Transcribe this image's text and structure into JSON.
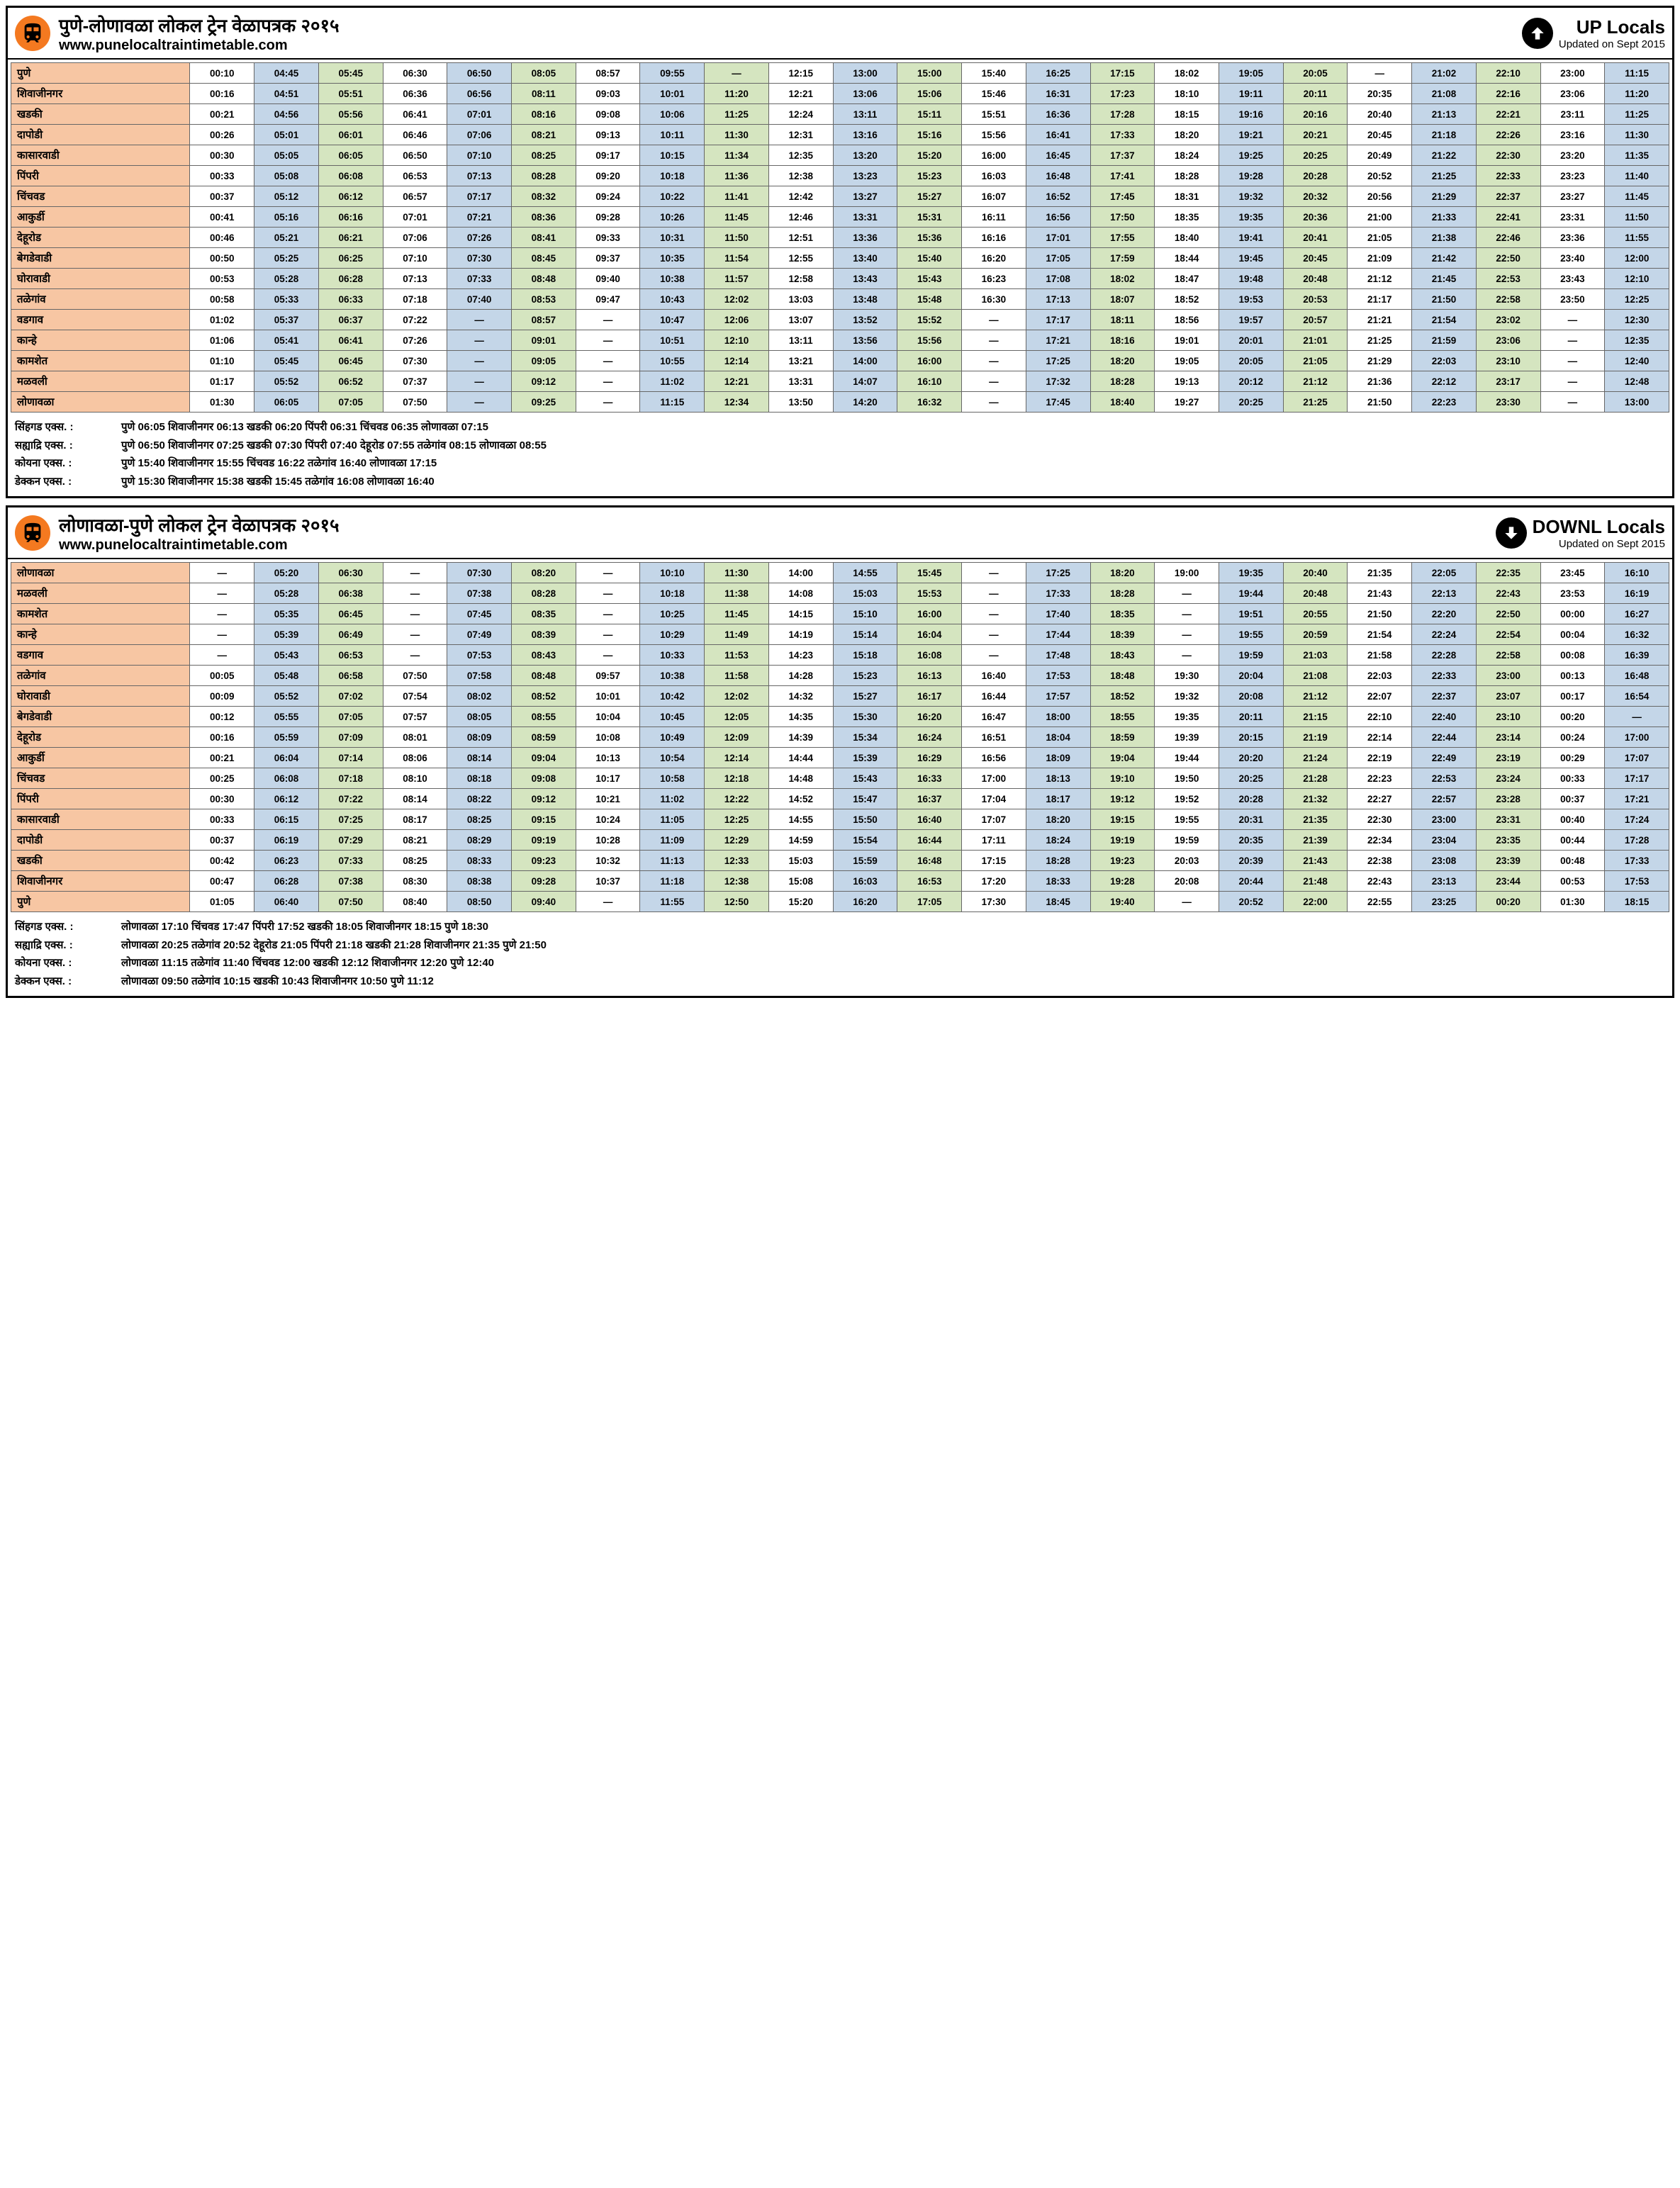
{
  "url": "www.punelocaltraintimetable.com",
  "updated": "Updated on Sept 2015",
  "colors": {
    "station_bg": "#f7c6a3",
    "col_blue": "#c4d6e8",
    "col_green": "#d5e5c0",
    "col_white": "#ffffff",
    "border": "#666666",
    "orange": "#f47920"
  },
  "up": {
    "title": "पुणे-लोणावळा लोकल ट्रेन वेळापत्रक २०१५",
    "dir_label": "UP Locals",
    "col_colors": [
      "w",
      "b",
      "g",
      "w",
      "b",
      "g",
      "w",
      "b",
      "g",
      "w",
      "b",
      "g",
      "w",
      "b",
      "g",
      "w",
      "b",
      "g",
      "w",
      "b",
      "g",
      "w",
      "b",
      "g",
      "w",
      "b"
    ],
    "stations": [
      "पुणे",
      "शिवाजीनगर",
      "खडकी",
      "दापोडी",
      "कासारवाडी",
      "पिंपरी",
      "चिंचवड",
      "आकुर्डी",
      "देहूरोड",
      "बेगडेवाडी",
      "घोरावाडी",
      "तळेगांव",
      "वडगाव",
      "कान्हे",
      "कामशेत",
      "मळवली",
      "लोणावळा"
    ],
    "rows": [
      [
        "00:10",
        "04:45",
        "05:45",
        "06:30",
        "06:50",
        "08:05",
        "08:57",
        "09:55",
        "—",
        "12:15",
        "13:00",
        "15:00",
        "15:40",
        "16:25",
        "17:15",
        "18:02",
        "19:05",
        "20:05",
        "—",
        "21:02",
        "22:10",
        "23:00",
        "11:15"
      ],
      [
        "00:16",
        "04:51",
        "05:51",
        "06:36",
        "06:56",
        "08:11",
        "09:03",
        "10:01",
        "11:20",
        "12:21",
        "13:06",
        "15:06",
        "15:46",
        "16:31",
        "17:23",
        "18:10",
        "19:11",
        "20:11",
        "20:35",
        "21:08",
        "22:16",
        "23:06",
        "11:20"
      ],
      [
        "00:21",
        "04:56",
        "05:56",
        "06:41",
        "07:01",
        "08:16",
        "09:08",
        "10:06",
        "11:25",
        "12:24",
        "13:11",
        "15:11",
        "15:51",
        "16:36",
        "17:28",
        "18:15",
        "19:16",
        "20:16",
        "20:40",
        "21:13",
        "22:21",
        "23:11",
        "11:25"
      ],
      [
        "00:26",
        "05:01",
        "06:01",
        "06:46",
        "07:06",
        "08:21",
        "09:13",
        "10:11",
        "11:30",
        "12:31",
        "13:16",
        "15:16",
        "15:56",
        "16:41",
        "17:33",
        "18:20",
        "19:21",
        "20:21",
        "20:45",
        "21:18",
        "22:26",
        "23:16",
        "11:30"
      ],
      [
        "00:30",
        "05:05",
        "06:05",
        "06:50",
        "07:10",
        "08:25",
        "09:17",
        "10:15",
        "11:34",
        "12:35",
        "13:20",
        "15:20",
        "16:00",
        "16:45",
        "17:37",
        "18:24",
        "19:25",
        "20:25",
        "20:49",
        "21:22",
        "22:30",
        "23:20",
        "11:35"
      ],
      [
        "00:33",
        "05:08",
        "06:08",
        "06:53",
        "07:13",
        "08:28",
        "09:20",
        "10:18",
        "11:36",
        "12:38",
        "13:23",
        "15:23",
        "16:03",
        "16:48",
        "17:41",
        "18:28",
        "19:28",
        "20:28",
        "20:52",
        "21:25",
        "22:33",
        "23:23",
        "11:40"
      ],
      [
        "00:37",
        "05:12",
        "06:12",
        "06:57",
        "07:17",
        "08:32",
        "09:24",
        "10:22",
        "11:41",
        "12:42",
        "13:27",
        "15:27",
        "16:07",
        "16:52",
        "17:45",
        "18:31",
        "19:32",
        "20:32",
        "20:56",
        "21:29",
        "22:37",
        "23:27",
        "11:45"
      ],
      [
        "00:41",
        "05:16",
        "06:16",
        "07:01",
        "07:21",
        "08:36",
        "09:28",
        "10:26",
        "11:45",
        "12:46",
        "13:31",
        "15:31",
        "16:11",
        "16:56",
        "17:50",
        "18:35",
        "19:35",
        "20:36",
        "21:00",
        "21:33",
        "22:41",
        "23:31",
        "11:50"
      ],
      [
        "00:46",
        "05:21",
        "06:21",
        "07:06",
        "07:26",
        "08:41",
        "09:33",
        "10:31",
        "11:50",
        "12:51",
        "13:36",
        "15:36",
        "16:16",
        "17:01",
        "17:55",
        "18:40",
        "19:41",
        "20:41",
        "21:05",
        "21:38",
        "22:46",
        "23:36",
        "11:55"
      ],
      [
        "00:50",
        "05:25",
        "06:25",
        "07:10",
        "07:30",
        "08:45",
        "09:37",
        "10:35",
        "11:54",
        "12:55",
        "13:40",
        "15:40",
        "16:20",
        "17:05",
        "17:59",
        "18:44",
        "19:45",
        "20:45",
        "21:09",
        "21:42",
        "22:50",
        "23:40",
        "12:00"
      ],
      [
        "00:53",
        "05:28",
        "06:28",
        "07:13",
        "07:33",
        "08:48",
        "09:40",
        "10:38",
        "11:57",
        "12:58",
        "13:43",
        "15:43",
        "16:23",
        "17:08",
        "18:02",
        "18:47",
        "19:48",
        "20:48",
        "21:12",
        "21:45",
        "22:53",
        "23:43",
        "12:10"
      ],
      [
        "00:58",
        "05:33",
        "06:33",
        "07:18",
        "07:40",
        "08:53",
        "09:47",
        "10:43",
        "12:02",
        "13:03",
        "13:48",
        "15:48",
        "16:30",
        "17:13",
        "18:07",
        "18:52",
        "19:53",
        "20:53",
        "21:17",
        "21:50",
        "22:58",
        "23:50",
        "12:25"
      ],
      [
        "01:02",
        "05:37",
        "06:37",
        "07:22",
        "—",
        "08:57",
        "—",
        "10:47",
        "12:06",
        "13:07",
        "13:52",
        "15:52",
        "—",
        "17:17",
        "18:11",
        "18:56",
        "19:57",
        "20:57",
        "21:21",
        "21:54",
        "23:02",
        "—",
        "12:30"
      ],
      [
        "01:06",
        "05:41",
        "06:41",
        "07:26",
        "—",
        "09:01",
        "—",
        "10:51",
        "12:10",
        "13:11",
        "13:56",
        "15:56",
        "—",
        "17:21",
        "18:16",
        "19:01",
        "20:01",
        "21:01",
        "21:25",
        "21:59",
        "23:06",
        "—",
        "12:35"
      ],
      [
        "01:10",
        "05:45",
        "06:45",
        "07:30",
        "—",
        "09:05",
        "—",
        "10:55",
        "12:14",
        "13:21",
        "14:00",
        "16:00",
        "—",
        "17:25",
        "18:20",
        "19:05",
        "20:05",
        "21:05",
        "21:29",
        "22:03",
        "23:10",
        "—",
        "12:40"
      ],
      [
        "01:17",
        "05:52",
        "06:52",
        "07:37",
        "—",
        "09:12",
        "—",
        "11:02",
        "12:21",
        "13:31",
        "14:07",
        "16:10",
        "—",
        "17:32",
        "18:28",
        "19:13",
        "20:12",
        "21:12",
        "21:36",
        "22:12",
        "23:17",
        "—",
        "12:48"
      ],
      [
        "01:30",
        "06:05",
        "07:05",
        "07:50",
        "—",
        "09:25",
        "—",
        "11:15",
        "12:34",
        "13:50",
        "14:20",
        "16:32",
        "—",
        "17:45",
        "18:40",
        "19:27",
        "20:25",
        "21:25",
        "21:50",
        "22:23",
        "23:30",
        "—",
        "13:00"
      ]
    ],
    "express": [
      {
        "label": "सिंहगड एक्स. :",
        "text": "पुणे 06:05 शिवाजीनगर 06:13 खडकी 06:20  पिंपरी 06:31  चिंचवड 06:35  लोणावळा 07:15"
      },
      {
        "label": "सह्याद्रि एक्स. :",
        "text": "पुणे 06:50 शिवाजीनगर 07:25 खडकी 07:30  पिंपरी 07:40 देहूरोड 07:55 तळेगांव 08:15 लोणावळा 08:55"
      },
      {
        "label": "कोयना एक्स. :",
        "text": "पुणे 15:40 शिवाजीनगर 15:55  चिंचवड 16:22 तळेगांव 16:40 लोणावळा 17:15"
      },
      {
        "label": "डेक्कन एक्स. :",
        "text": "पुणे 15:30 शिवाजीनगर 15:38 खडकी 15:45 तळेगांव 16:08 लोणावळा 16:40"
      }
    ]
  },
  "down": {
    "title": "लोणावळा-पुणे  लोकल ट्रेन वेळापत्रक २०१५",
    "dir_label": "DOWNL Locals",
    "col_colors": [
      "w",
      "b",
      "g",
      "w",
      "b",
      "g",
      "w",
      "b",
      "g",
      "w",
      "b",
      "g",
      "w",
      "b",
      "g",
      "w",
      "b",
      "g",
      "w",
      "b",
      "g",
      "w",
      "b",
      "g",
      "w",
      "b"
    ],
    "stations": [
      "लोणावळा",
      "मळवली",
      "कामशेत",
      "कान्हे",
      "वडगाव",
      "तळेगांव",
      "घोरावाडी",
      "बेगडेवाडी",
      "देहूरोड",
      "आकुर्डी",
      "चिंचवड",
      "पिंपरी",
      "कासारवाडी",
      "दापोडी",
      "खडकी",
      "शिवाजीनगर",
      "पुणे"
    ],
    "rows": [
      [
        "—",
        "05:20",
        "06:30",
        "—",
        "07:30",
        "08:20",
        "—",
        "10:10",
        "11:30",
        "14:00",
        "14:55",
        "15:45",
        "—",
        "17:25",
        "18:20",
        "19:00",
        "19:35",
        "20:40",
        "21:35",
        "22:05",
        "22:35",
        "23:45",
        "16:10"
      ],
      [
        "—",
        "05:28",
        "06:38",
        "—",
        "07:38",
        "08:28",
        "—",
        "10:18",
        "11:38",
        "14:08",
        "15:03",
        "15:53",
        "—",
        "17:33",
        "18:28",
        "—",
        "19:44",
        "20:48",
        "21:43",
        "22:13",
        "22:43",
        "23:53",
        "16:19"
      ],
      [
        "—",
        "05:35",
        "06:45",
        "—",
        "07:45",
        "08:35",
        "—",
        "10:25",
        "11:45",
        "14:15",
        "15:10",
        "16:00",
        "—",
        "17:40",
        "18:35",
        "—",
        "19:51",
        "20:55",
        "21:50",
        "22:20",
        "22:50",
        "00:00",
        "16:27"
      ],
      [
        "—",
        "05:39",
        "06:49",
        "—",
        "07:49",
        "08:39",
        "—",
        "10:29",
        "11:49",
        "14:19",
        "15:14",
        "16:04",
        "—",
        "17:44",
        "18:39",
        "—",
        "19:55",
        "20:59",
        "21:54",
        "22:24",
        "22:54",
        "00:04",
        "16:32"
      ],
      [
        "—",
        "05:43",
        "06:53",
        "—",
        "07:53",
        "08:43",
        "—",
        "10:33",
        "11:53",
        "14:23",
        "15:18",
        "16:08",
        "—",
        "17:48",
        "18:43",
        "—",
        "19:59",
        "21:03",
        "21:58",
        "22:28",
        "22:58",
        "00:08",
        "16:39"
      ],
      [
        "00:05",
        "05:48",
        "06:58",
        "07:50",
        "07:58",
        "08:48",
        "09:57",
        "10:38",
        "11:58",
        "14:28",
        "15:23",
        "16:13",
        "16:40",
        "17:53",
        "18:48",
        "19:30",
        "20:04",
        "21:08",
        "22:03",
        "22:33",
        "23:00",
        "00:13",
        "16:48"
      ],
      [
        "00:09",
        "05:52",
        "07:02",
        "07:54",
        "08:02",
        "08:52",
        "10:01",
        "10:42",
        "12:02",
        "14:32",
        "15:27",
        "16:17",
        "16:44",
        "17:57",
        "18:52",
        "19:32",
        "20:08",
        "21:12",
        "22:07",
        "22:37",
        "23:07",
        "00:17",
        "16:54"
      ],
      [
        "00:12",
        "05:55",
        "07:05",
        "07:57",
        "08:05",
        "08:55",
        "10:04",
        "10:45",
        "12:05",
        "14:35",
        "15:30",
        "16:20",
        "16:47",
        "18:00",
        "18:55",
        "19:35",
        "20:11",
        "21:15",
        "22:10",
        "22:40",
        "23:10",
        "00:20",
        "—"
      ],
      [
        "00:16",
        "05:59",
        "07:09",
        "08:01",
        "08:09",
        "08:59",
        "10:08",
        "10:49",
        "12:09",
        "14:39",
        "15:34",
        "16:24",
        "16:51",
        "18:04",
        "18:59",
        "19:39",
        "20:15",
        "21:19",
        "22:14",
        "22:44",
        "23:14",
        "00:24",
        "17:00"
      ],
      [
        "00:21",
        "06:04",
        "07:14",
        "08:06",
        "08:14",
        "09:04",
        "10:13",
        "10:54",
        "12:14",
        "14:44",
        "15:39",
        "16:29",
        "16:56",
        "18:09",
        "19:04",
        "19:44",
        "20:20",
        "21:24",
        "22:19",
        "22:49",
        "23:19",
        "00:29",
        "17:07"
      ],
      [
        "00:25",
        "06:08",
        "07:18",
        "08:10",
        "08:18",
        "09:08",
        "10:17",
        "10:58",
        "12:18",
        "14:48",
        "15:43",
        "16:33",
        "17:00",
        "18:13",
        "19:10",
        "19:50",
        "20:25",
        "21:28",
        "22:23",
        "22:53",
        "23:24",
        "00:33",
        "17:17"
      ],
      [
        "00:30",
        "06:12",
        "07:22",
        "08:14",
        "08:22",
        "09:12",
        "10:21",
        "11:02",
        "12:22",
        "14:52",
        "15:47",
        "16:37",
        "17:04",
        "18:17",
        "19:12",
        "19:52",
        "20:28",
        "21:32",
        "22:27",
        "22:57",
        "23:28",
        "00:37",
        "17:21"
      ],
      [
        "00:33",
        "06:15",
        "07:25",
        "08:17",
        "08:25",
        "09:15",
        "10:24",
        "11:05",
        "12:25",
        "14:55",
        "15:50",
        "16:40",
        "17:07",
        "18:20",
        "19:15",
        "19:55",
        "20:31",
        "21:35",
        "22:30",
        "23:00",
        "23:31",
        "00:40",
        "17:24"
      ],
      [
        "00:37",
        "06:19",
        "07:29",
        "08:21",
        "08:29",
        "09:19",
        "10:28",
        "11:09",
        "12:29",
        "14:59",
        "15:54",
        "16:44",
        "17:11",
        "18:24",
        "19:19",
        "19:59",
        "20:35",
        "21:39",
        "22:34",
        "23:04",
        "23:35",
        "00:44",
        "17:28"
      ],
      [
        "00:42",
        "06:23",
        "07:33",
        "08:25",
        "08:33",
        "09:23",
        "10:32",
        "11:13",
        "12:33",
        "15:03",
        "15:59",
        "16:48",
        "17:15",
        "18:28",
        "19:23",
        "20:03",
        "20:39",
        "21:43",
        "22:38",
        "23:08",
        "23:39",
        "00:48",
        "17:33"
      ],
      [
        "00:47",
        "06:28",
        "07:38",
        "08:30",
        "08:38",
        "09:28",
        "10:37",
        "11:18",
        "12:38",
        "15:08",
        "16:03",
        "16:53",
        "17:20",
        "18:33",
        "19:28",
        "20:08",
        "20:44",
        "21:48",
        "22:43",
        "23:13",
        "23:44",
        "00:53",
        "17:53"
      ],
      [
        "01:05",
        "06:40",
        "07:50",
        "08:40",
        "08:50",
        "09:40",
        "—",
        "11:55",
        "12:50",
        "15:20",
        "16:20",
        "17:05",
        "17:30",
        "18:45",
        "19:40",
        "—",
        "20:52",
        "22:00",
        "22:55",
        "23:25",
        "00:20",
        "01:30",
        "18:15"
      ]
    ],
    "express": [
      {
        "label": "सिंहगड एक्स. :",
        "text": "लोणावळा 17:10 चिंचवड 17:47 पिंपरी 17:52 खडकी 18:05 शिवाजीनगर 18:15 पुणे 18:30"
      },
      {
        "label": "सह्याद्रि एक्स. :",
        "text": "लोणावळा 20:25 तळेगांव 20:52 देहूरोड 21:05 पिंपरी 21:18 खडकी 21:28  शिवाजीनगर 21:35  पुणे 21:50"
      },
      {
        "label": "कोयना एक्स. :",
        "text": "लोणावळा 11:15 तळेगांव 11:40 चिंचवड 12:00 खडकी 12:12 शिवाजीनगर 12:20  पुणे 12:40"
      },
      {
        "label": "डेक्कन एक्स. :",
        "text": "लोणावळा 09:50 तळेगांव 10:15 खडकी 10:43 शिवाजीनगर 10:50 पुणे 11:12"
      }
    ]
  }
}
